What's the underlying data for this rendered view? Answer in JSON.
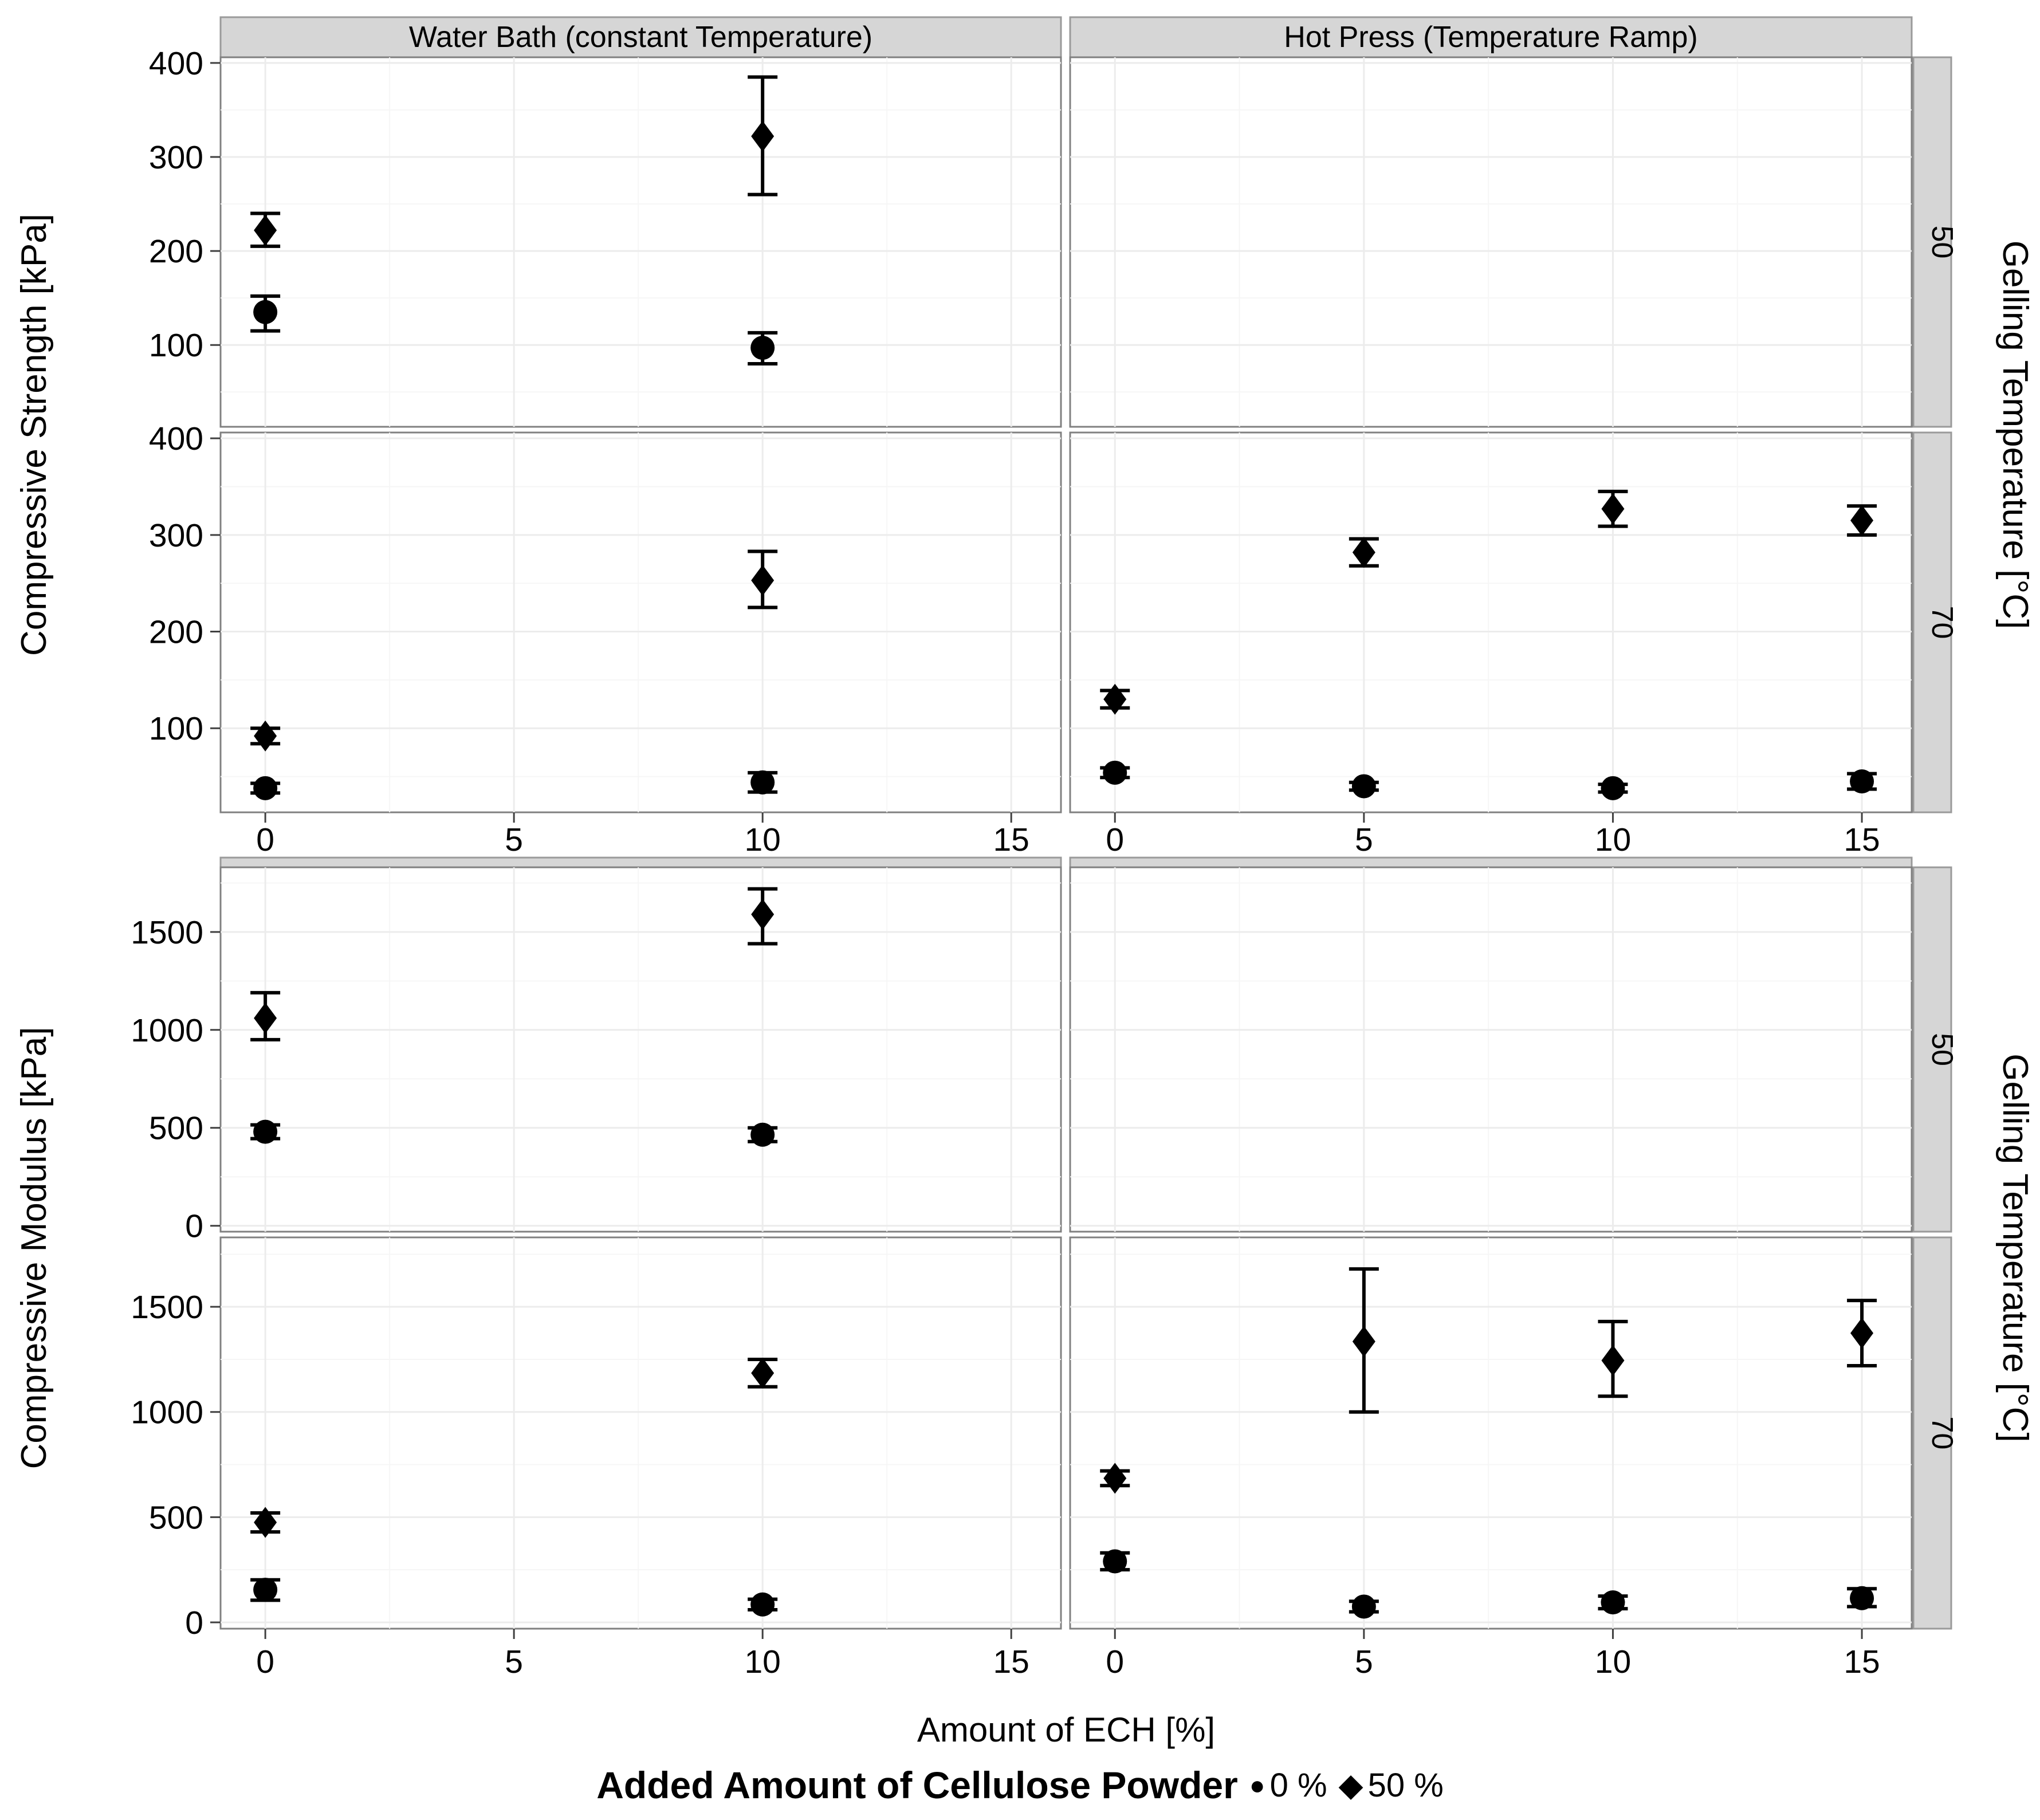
{
  "figure": {
    "x_axis_title": "Amount of ECH [%]",
    "right_axis_title": "Gelling Temperature [°C]",
    "colors": {
      "strip_fill": "#d6d6d6",
      "strip_border": "#9a9a9a",
      "panel_border": "#808080",
      "grid_major": "#ececec",
      "grid_minor": "#f6f6f6",
      "marker": "#000000",
      "text": "#000000"
    }
  },
  "legend": {
    "title": "Added Amount of Cellulose Powder",
    "items": [
      {
        "marker": "circle",
        "label": "0 %"
      },
      {
        "marker": "diamond",
        "label": "50 %"
      }
    ]
  },
  "chart_data": [
    {
      "type": "scatter",
      "name": "compressive-strength",
      "ylabel": "Compressive Strength [kPa]",
      "col_labels": [
        "Water Bath (constant Temperature)",
        "Hot Press (Temperature Ramp)"
      ],
      "row_labels": [
        "50",
        "70"
      ],
      "show_col_strip_text": true,
      "xlim": [
        -0.9,
        16
      ],
      "ylim": [
        13,
        406
      ],
      "x_ticks": [
        0,
        5,
        10,
        15
      ],
      "x_minor": [
        2.5,
        7.5,
        12.5
      ],
      "y_ticks": [
        100,
        200,
        300,
        400
      ],
      "y_minor": [
        50,
        150,
        250,
        350
      ],
      "series_markers": {
        "0 %": "circle",
        "50 %": "diamond"
      },
      "panels": [
        {
          "row": 0,
          "col": 0,
          "points": [
            {
              "x": 0,
              "series": "0 %",
              "y": 135,
              "lo": 115,
              "hi": 152
            },
            {
              "x": 0,
              "series": "50 %",
              "y": 222,
              "lo": 205,
              "hi": 240
            },
            {
              "x": 10,
              "series": "0 %",
              "y": 97,
              "lo": 80,
              "hi": 113
            },
            {
              "x": 10,
              "series": "50 %",
              "y": 322,
              "lo": 260,
              "hi": 385
            }
          ]
        },
        {
          "row": 0,
          "col": 1,
          "points": []
        },
        {
          "row": 1,
          "col": 0,
          "points": [
            {
              "x": 0,
              "series": "0 %",
              "y": 38,
              "lo": 33,
              "hi": 43
            },
            {
              "x": 0,
              "series": "50 %",
              "y": 92,
              "lo": 84,
              "hi": 100
            },
            {
              "x": 10,
              "series": "0 %",
              "y": 44,
              "lo": 34,
              "hi": 54
            },
            {
              "x": 10,
              "series": "50 %",
              "y": 253,
              "lo": 225,
              "hi": 283
            }
          ]
        },
        {
          "row": 1,
          "col": 1,
          "points": [
            {
              "x": 0,
              "series": "0 %",
              "y": 54,
              "lo": 49,
              "hi": 59
            },
            {
              "x": 0,
              "series": "50 %",
              "y": 130,
              "lo": 121,
              "hi": 139
            },
            {
              "x": 5,
              "series": "0 %",
              "y": 40,
              "lo": 36,
              "hi": 44
            },
            {
              "x": 5,
              "series": "50 %",
              "y": 282,
              "lo": 268,
              "hi": 296
            },
            {
              "x": 10,
              "series": "0 %",
              "y": 38,
              "lo": 34,
              "hi": 42
            },
            {
              "x": 10,
              "series": "50 %",
              "y": 327,
              "lo": 309,
              "hi": 345
            },
            {
              "x": 15,
              "series": "0 %",
              "y": 45,
              "lo": 37,
              "hi": 53
            },
            {
              "x": 15,
              "series": "50 %",
              "y": 315,
              "lo": 300,
              "hi": 330
            }
          ]
        }
      ]
    },
    {
      "type": "scatter",
      "name": "compressive-modulus",
      "ylabel": "Compressive Modulus [kPa]",
      "col_labels": [
        "",
        ""
      ],
      "row_labels": [
        "50",
        "70"
      ],
      "show_col_strip_text": false,
      "xlim": [
        -0.9,
        16
      ],
      "ylim": [
        -30,
        1830
      ],
      "x_ticks": [
        0,
        5,
        10,
        15
      ],
      "x_minor": [
        2.5,
        7.5,
        12.5
      ],
      "y_ticks": [
        0,
        500,
        1000,
        1500
      ],
      "y_minor": [
        250,
        750,
        1250,
        1750
      ],
      "series_markers": {
        "0 %": "circle",
        "50 %": "diamond"
      },
      "panels": [
        {
          "row": 0,
          "col": 0,
          "points": [
            {
              "x": 0,
              "series": "0 %",
              "y": 480,
              "lo": 445,
              "hi": 515
            },
            {
              "x": 0,
              "series": "50 %",
              "y": 1060,
              "lo": 950,
              "hi": 1190
            },
            {
              "x": 10,
              "series": "0 %",
              "y": 465,
              "lo": 430,
              "hi": 500
            },
            {
              "x": 10,
              "series": "50 %",
              "y": 1590,
              "lo": 1440,
              "hi": 1720
            }
          ]
        },
        {
          "row": 0,
          "col": 1,
          "points": []
        },
        {
          "row": 1,
          "col": 0,
          "points": [
            {
              "x": 0,
              "series": "0 %",
              "y": 155,
              "lo": 105,
              "hi": 202
            },
            {
              "x": 0,
              "series": "50 %",
              "y": 475,
              "lo": 430,
              "hi": 520
            },
            {
              "x": 10,
              "series": "0 %",
              "y": 85,
              "lo": 60,
              "hi": 110
            },
            {
              "x": 10,
              "series": "50 %",
              "y": 1185,
              "lo": 1120,
              "hi": 1250
            }
          ]
        },
        {
          "row": 1,
          "col": 1,
          "points": [
            {
              "x": 0,
              "series": "0 %",
              "y": 290,
              "lo": 250,
              "hi": 330
            },
            {
              "x": 0,
              "series": "50 %",
              "y": 685,
              "lo": 650,
              "hi": 720
            },
            {
              "x": 5,
              "series": "0 %",
              "y": 75,
              "lo": 50,
              "hi": 100
            },
            {
              "x": 5,
              "series": "50 %",
              "y": 1335,
              "lo": 1000,
              "hi": 1680
            },
            {
              "x": 10,
              "series": "0 %",
              "y": 95,
              "lo": 65,
              "hi": 125
            },
            {
              "x": 10,
              "series": "50 %",
              "y": 1245,
              "lo": 1075,
              "hi": 1430
            },
            {
              "x": 15,
              "series": "0 %",
              "y": 115,
              "lo": 75,
              "hi": 160
            },
            {
              "x": 15,
              "series": "50 %",
              "y": 1375,
              "lo": 1220,
              "hi": 1530
            }
          ]
        }
      ]
    }
  ]
}
